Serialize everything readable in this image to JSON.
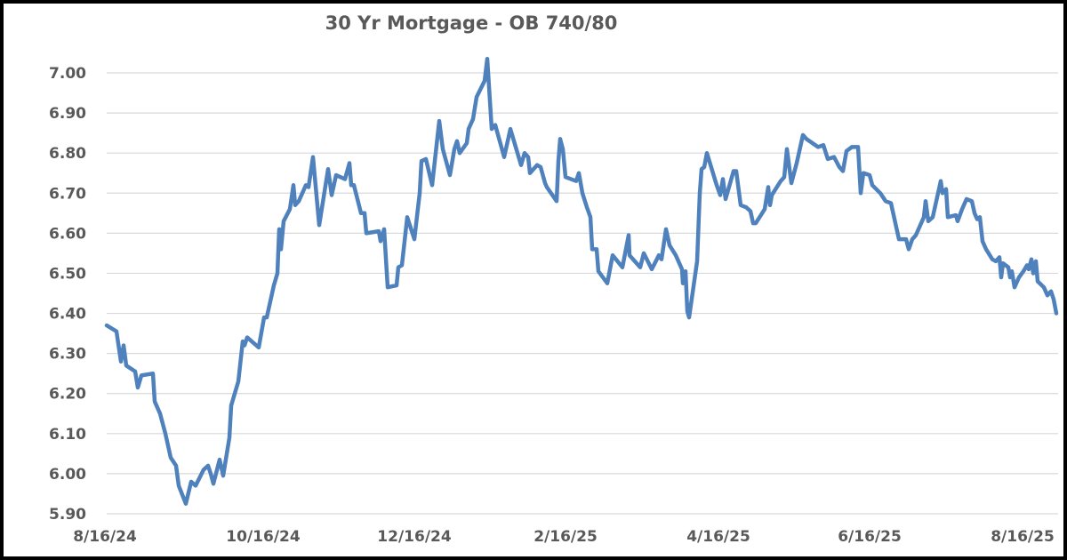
{
  "chart_data": {
    "type": "line",
    "title": "30 Yr Mortgage - OB 740/80",
    "xlabel": "",
    "ylabel": "",
    "ylim": [
      5.9,
      7.0
    ],
    "yticks": [
      "7.00",
      "6.90",
      "6.80",
      "6.70",
      "6.60",
      "6.50",
      "6.40",
      "6.30",
      "6.20",
      "6.10",
      "6.00",
      "5.90"
    ],
    "xticks": [
      "8/16/24",
      "10/16/24",
      "12/16/24",
      "2/16/25",
      "4/16/25",
      "6/16/25",
      "8/16/25"
    ],
    "grid": true,
    "legend": "none",
    "color": "#4F81BD",
    "series": [
      {
        "name": "30 Yr Mortgage - OB 740/80",
        "points": [
          [
            120,
            6.37
          ],
          [
            131,
            6.355
          ],
          [
            136,
            6.28
          ],
          [
            139,
            6.32
          ],
          [
            142,
            6.27
          ],
          [
            152,
            6.255
          ],
          [
            155,
            6.215
          ],
          [
            159,
            6.245
          ],
          [
            172,
            6.25
          ],
          [
            174,
            6.18
          ],
          [
            180,
            6.15
          ],
          [
            186,
            6.1
          ],
          [
            192,
            6.04
          ],
          [
            198,
            6.02
          ],
          [
            201,
            5.97
          ],
          [
            209,
            5.925
          ],
          [
            215,
            5.98
          ],
          [
            220,
            5.97
          ],
          [
            229,
            6.01
          ],
          [
            234,
            6.02
          ],
          [
            237,
            6.0
          ],
          [
            240,
            5.975
          ],
          [
            247,
            6.035
          ],
          [
            251,
            5.995
          ],
          [
            258,
            6.09
          ],
          [
            260,
            6.17
          ],
          [
            268,
            6.23
          ],
          [
            273,
            6.33
          ],
          [
            275,
            6.32
          ],
          [
            278,
            6.34
          ],
          [
            291,
            6.315
          ],
          [
            297,
            6.39
          ],
          [
            300,
            6.39
          ],
          [
            308,
            6.47
          ],
          [
            312,
            6.5
          ],
          [
            314,
            6.61
          ],
          [
            316,
            6.56
          ],
          [
            319,
            6.63
          ],
          [
            326,
            6.66
          ],
          [
            330,
            6.72
          ],
          [
            332,
            6.67
          ],
          [
            336,
            6.68
          ],
          [
            344,
            6.72
          ],
          [
            347,
            6.715
          ],
          [
            352,
            6.79
          ],
          [
            359,
            6.62
          ],
          [
            369,
            6.76
          ],
          [
            373,
            6.695
          ],
          [
            378,
            6.745
          ],
          [
            388,
            6.735
          ],
          [
            393,
            6.775
          ],
          [
            395,
            6.72
          ],
          [
            398,
            6.72
          ],
          [
            406,
            6.65
          ],
          [
            410,
            6.65
          ],
          [
            412,
            6.6
          ],
          [
            426,
            6.605
          ],
          [
            428,
            6.58
          ],
          [
            432,
            6.61
          ],
          [
            436,
            6.465
          ],
          [
            446,
            6.47
          ],
          [
            448,
            6.515
          ],
          [
            452,
            6.52
          ],
          [
            458,
            6.64
          ],
          [
            466,
            6.585
          ],
          [
            472,
            6.7
          ],
          [
            474,
            6.78
          ],
          [
            479,
            6.785
          ],
          [
            486,
            6.72
          ],
          [
            494,
            6.88
          ],
          [
            498,
            6.81
          ],
          [
            506,
            6.745
          ],
          [
            511,
            6.81
          ],
          [
            514,
            6.83
          ],
          [
            517,
            6.8
          ],
          [
            525,
            6.825
          ],
          [
            527,
            6.86
          ],
          [
            532,
            6.885
          ],
          [
            536,
            6.94
          ],
          [
            545,
            6.98
          ],
          [
            548,
            7.035
          ],
          [
            553,
            6.86
          ],
          [
            557,
            6.87
          ],
          [
            567,
            6.79
          ],
          [
            574,
            6.86
          ],
          [
            586,
            6.77
          ],
          [
            590,
            6.8
          ],
          [
            594,
            6.79
          ],
          [
            596,
            6.75
          ],
          [
            604,
            6.77
          ],
          [
            608,
            6.765
          ],
          [
            613,
            6.725
          ],
          [
            615,
            6.715
          ],
          [
            626,
            6.68
          ],
          [
            628,
            6.78
          ],
          [
            630,
            6.835
          ],
          [
            633,
            6.81
          ],
          [
            636,
            6.74
          ],
          [
            648,
            6.73
          ],
          [
            651,
            6.75
          ],
          [
            655,
            6.7
          ],
          [
            660,
            6.665
          ],
          [
            664,
            6.64
          ],
          [
            666,
            6.56
          ],
          [
            671,
            6.56
          ],
          [
            673,
            6.505
          ],
          [
            683,
            6.475
          ],
          [
            689,
            6.545
          ],
          [
            700,
            6.515
          ],
          [
            707,
            6.595
          ],
          [
            708,
            6.545
          ],
          [
            720,
            6.515
          ],
          [
            724,
            6.55
          ],
          [
            733,
            6.51
          ],
          [
            741,
            6.545
          ],
          [
            744,
            6.535
          ],
          [
            749,
            6.61
          ],
          [
            753,
            6.57
          ],
          [
            760,
            6.545
          ],
          [
            767,
            6.51
          ],
          [
            768,
            6.475
          ],
          [
            771,
            6.505
          ],
          [
            773,
            6.405
          ],
          [
            775,
            6.39
          ],
          [
            784,
            6.53
          ],
          [
            787,
            6.7
          ],
          [
            789,
            6.76
          ],
          [
            792,
            6.765
          ],
          [
            795,
            6.8
          ],
          [
            806,
            6.72
          ],
          [
            810,
            6.695
          ],
          [
            813,
            6.735
          ],
          [
            816,
            6.685
          ],
          [
            825,
            6.755
          ],
          [
            828,
            6.755
          ],
          [
            833,
            6.67
          ],
          [
            839,
            6.665
          ],
          [
            844,
            6.655
          ],
          [
            847,
            6.625
          ],
          [
            850,
            6.625
          ],
          [
            860,
            6.66
          ],
          [
            864,
            6.715
          ],
          [
            866,
            6.67
          ],
          [
            868,
            6.695
          ],
          [
            878,
            6.73
          ],
          [
            882,
            6.74
          ],
          [
            885,
            6.81
          ],
          [
            890,
            6.725
          ],
          [
            896,
            6.775
          ],
          [
            903,
            6.845
          ],
          [
            907,
            6.835
          ],
          [
            920,
            6.815
          ],
          [
            926,
            6.82
          ],
          [
            931,
            6.785
          ],
          [
            938,
            6.79
          ],
          [
            944,
            6.765
          ],
          [
            948,
            6.755
          ],
          [
            952,
            6.805
          ],
          [
            958,
            6.815
          ],
          [
            965,
            6.815
          ],
          [
            968,
            6.7
          ],
          [
            971,
            6.75
          ],
          [
            978,
            6.745
          ],
          [
            981,
            6.72
          ],
          [
            990,
            6.7
          ],
          [
            996,
            6.68
          ],
          [
            1002,
            6.675
          ],
          [
            1008,
            6.615
          ],
          [
            1011,
            6.585
          ],
          [
            1019,
            6.585
          ],
          [
            1022,
            6.56
          ],
          [
            1026,
            6.585
          ],
          [
            1030,
            6.595
          ],
          [
            1039,
            6.64
          ],
          [
            1041,
            6.68
          ],
          [
            1044,
            6.63
          ],
          [
            1049,
            6.64
          ],
          [
            1058,
            6.73
          ],
          [
            1060,
            6.7
          ],
          [
            1064,
            6.71
          ],
          [
            1066,
            6.64
          ],
          [
            1075,
            6.645
          ],
          [
            1077,
            6.63
          ],
          [
            1082,
            6.66
          ],
          [
            1087,
            6.685
          ],
          [
            1093,
            6.68
          ],
          [
            1096,
            6.65
          ],
          [
            1099,
            6.635
          ],
          [
            1102,
            6.64
          ],
          [
            1105,
            6.58
          ],
          [
            1109,
            6.56
          ],
          [
            1116,
            6.535
          ],
          [
            1120,
            6.53
          ],
          [
            1124,
            6.54
          ],
          [
            1126,
            6.49
          ],
          [
            1128,
            6.525
          ],
          [
            1134,
            6.515
          ],
          [
            1136,
            6.49
          ],
          [
            1138,
            6.505
          ],
          [
            1141,
            6.465
          ],
          [
            1146,
            6.49
          ],
          [
            1151,
            6.505
          ],
          [
            1155,
            6.52
          ],
          [
            1157,
            6.51
          ],
          [
            1160,
            6.535
          ],
          [
            1162,
            6.5
          ],
          [
            1165,
            6.53
          ],
          [
            1167,
            6.48
          ],
          [
            1174,
            6.465
          ],
          [
            1178,
            6.445
          ],
          [
            1182,
            6.455
          ],
          [
            1185,
            6.435
          ],
          [
            1188,
            6.4
          ]
        ]
      }
    ]
  }
}
